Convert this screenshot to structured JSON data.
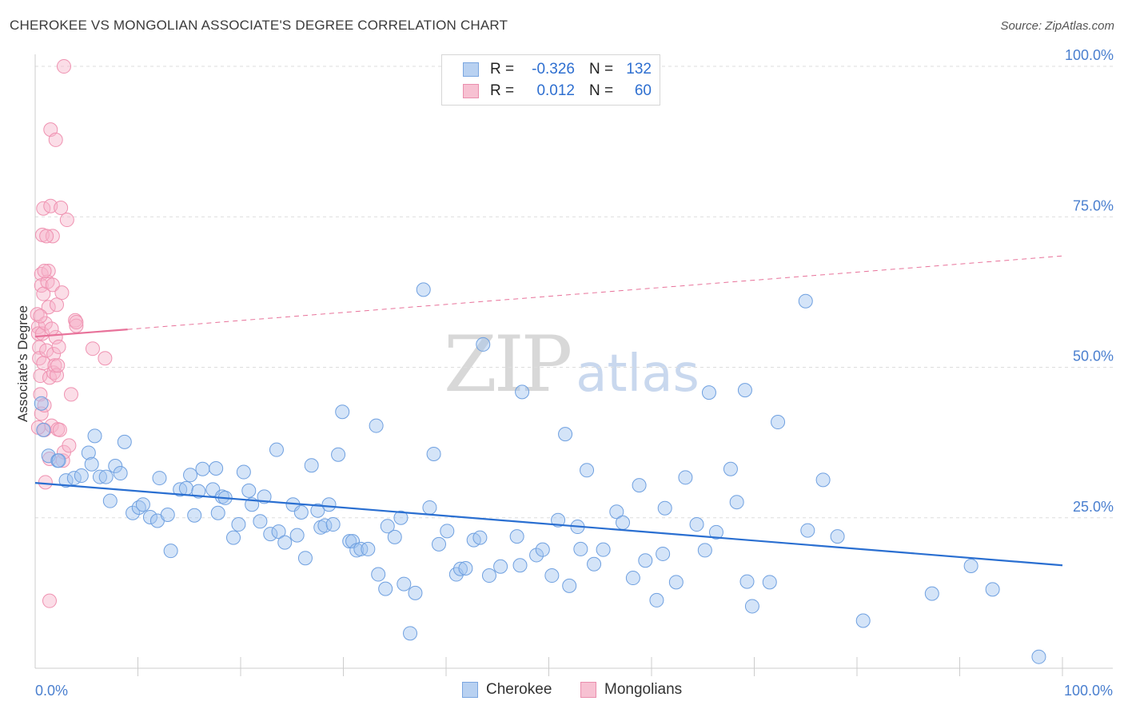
{
  "header": {
    "title": "CHEROKEE VS MONGOLIAN ASSOCIATE'S DEGREE CORRELATION CHART",
    "source": "Source: ZipAtlas.com"
  },
  "watermark": {
    "zip": "ZIP",
    "atlas": "atlas"
  },
  "legend": {
    "rows": [
      {
        "r_label": "R =",
        "r_value": "-0.326",
        "n_label": "N =",
        "n_value": "132",
        "fill": "#b8d1f1",
        "stroke": "#7aa6e0"
      },
      {
        "r_label": "R =",
        "r_value": "0.012",
        "n_label": "N =",
        "n_value": "60",
        "fill": "#f7c1d2",
        "stroke": "#ea8fae"
      }
    ]
  },
  "bottom_legend": [
    {
      "label": "Cherokee",
      "fill": "#b8d1f1",
      "stroke": "#7aa6e0"
    },
    {
      "label": "Mongolians",
      "fill": "#f7c1d2",
      "stroke": "#ea8fae"
    }
  ],
  "chart_data": {
    "type": "scatter",
    "title": "CHEROKEE VS MONGOLIAN ASSOCIATE'S DEGREE CORRELATION CHART",
    "xlabel": "",
    "ylabel": "Associate's Degree",
    "xlim": [
      0,
      100
    ],
    "ylim": [
      0,
      102
    ],
    "x_tick_labels": [
      "0.0%",
      "100.0%"
    ],
    "y_ticks": [
      25,
      50,
      75,
      100
    ],
    "y_tick_labels": [
      "25.0%",
      "50.0%",
      "75.0%",
      "100.0%"
    ],
    "grid": true,
    "legend_position": "top-center",
    "series": [
      {
        "name": "Cherokee",
        "color": "#6fa0e0",
        "trend": {
          "x": [
            0,
            100
          ],
          "y": [
            30.8,
            17.1
          ],
          "style": "solid",
          "color": "#2a6fd1"
        },
        "points": [
          [
            0.6,
            44.0
          ],
          [
            0.8,
            39.6
          ],
          [
            1.3,
            35.3
          ],
          [
            2.2,
            34.5
          ],
          [
            2.3,
            34.5
          ],
          [
            3.0,
            31.2
          ],
          [
            3.8,
            31.6
          ],
          [
            4.5,
            32.0
          ],
          [
            5.2,
            35.8
          ],
          [
            5.5,
            33.9
          ],
          [
            5.8,
            38.6
          ],
          [
            6.3,
            31.8
          ],
          [
            6.9,
            31.8
          ],
          [
            7.3,
            27.8
          ],
          [
            7.8,
            33.6
          ],
          [
            8.3,
            32.4
          ],
          [
            8.7,
            37.6
          ],
          [
            9.5,
            25.8
          ],
          [
            10.1,
            26.7
          ],
          [
            10.5,
            27.2
          ],
          [
            11.2,
            25.1
          ],
          [
            11.9,
            24.5
          ],
          [
            12.1,
            31.6
          ],
          [
            12.9,
            25.5
          ],
          [
            13.2,
            19.5
          ],
          [
            14.1,
            29.7
          ],
          [
            14.7,
            29.9
          ],
          [
            15.1,
            32.1
          ],
          [
            15.5,
            25.4
          ],
          [
            15.9,
            29.4
          ],
          [
            16.3,
            33.1
          ],
          [
            17.3,
            29.7
          ],
          [
            17.6,
            33.2
          ],
          [
            17.8,
            25.8
          ],
          [
            18.2,
            28.5
          ],
          [
            18.5,
            28.3
          ],
          [
            19.3,
            21.7
          ],
          [
            19.8,
            23.9
          ],
          [
            20.3,
            32.6
          ],
          [
            20.8,
            29.5
          ],
          [
            21.1,
            27.2
          ],
          [
            21.9,
            24.4
          ],
          [
            22.3,
            28.5
          ],
          [
            22.9,
            22.3
          ],
          [
            23.5,
            36.3
          ],
          [
            23.7,
            22.7
          ],
          [
            24.3,
            20.9
          ],
          [
            25.1,
            27.2
          ],
          [
            25.5,
            22.1
          ],
          [
            25.9,
            25.9
          ],
          [
            26.3,
            18.3
          ],
          [
            26.9,
            33.7
          ],
          [
            27.5,
            26.2
          ],
          [
            27.8,
            23.4
          ],
          [
            28.2,
            23.7
          ],
          [
            28.6,
            27.2
          ],
          [
            29.0,
            23.9
          ],
          [
            29.5,
            35.5
          ],
          [
            29.9,
            42.6
          ],
          [
            30.6,
            21.1
          ],
          [
            30.9,
            21.1
          ],
          [
            31.3,
            19.6
          ],
          [
            31.7,
            19.8
          ],
          [
            32.4,
            19.8
          ],
          [
            33.2,
            40.3
          ],
          [
            33.4,
            15.6
          ],
          [
            34.1,
            13.2
          ],
          [
            34.3,
            23.6
          ],
          [
            35.0,
            21.8
          ],
          [
            35.6,
            25.0
          ],
          [
            35.9,
            14.0
          ],
          [
            36.5,
            5.8
          ],
          [
            37.0,
            12.5
          ],
          [
            37.8,
            62.9
          ],
          [
            38.4,
            26.7
          ],
          [
            38.8,
            35.6
          ],
          [
            39.3,
            20.6
          ],
          [
            40.1,
            22.8
          ],
          [
            41.0,
            15.6
          ],
          [
            41.4,
            16.5
          ],
          [
            41.9,
            16.6
          ],
          [
            42.7,
            21.3
          ],
          [
            43.3,
            21.7
          ],
          [
            43.6,
            53.8
          ],
          [
            44.2,
            15.4
          ],
          [
            45.3,
            16.9
          ],
          [
            46.9,
            21.9
          ],
          [
            47.2,
            17.1
          ],
          [
            47.4,
            45.9
          ],
          [
            48.8,
            18.8
          ],
          [
            49.4,
            19.7
          ],
          [
            50.3,
            15.4
          ],
          [
            50.9,
            24.6
          ],
          [
            51.6,
            38.9
          ],
          [
            52.0,
            13.7
          ],
          [
            52.8,
            23.5
          ],
          [
            53.1,
            19.8
          ],
          [
            53.7,
            32.9
          ],
          [
            54.4,
            17.3
          ],
          [
            55.3,
            19.7
          ],
          [
            56.6,
            26.0
          ],
          [
            57.2,
            24.2
          ],
          [
            58.2,
            15.0
          ],
          [
            58.8,
            30.4
          ],
          [
            59.4,
            17.9
          ],
          [
            60.5,
            11.3
          ],
          [
            61.1,
            19.0
          ],
          [
            61.3,
            26.6
          ],
          [
            62.4,
            14.3
          ],
          [
            63.3,
            31.7
          ],
          [
            64.4,
            23.9
          ],
          [
            65.2,
            19.6
          ],
          [
            65.6,
            45.8
          ],
          [
            66.3,
            22.6
          ],
          [
            67.7,
            33.1
          ],
          [
            68.3,
            27.6
          ],
          [
            69.1,
            46.2
          ],
          [
            69.3,
            14.4
          ],
          [
            69.8,
            10.3
          ],
          [
            71.5,
            14.3
          ],
          [
            72.3,
            40.9
          ],
          [
            75.0,
            61.0
          ],
          [
            75.2,
            22.9
          ],
          [
            76.7,
            31.3
          ],
          [
            78.1,
            21.9
          ],
          [
            80.6,
            7.9
          ],
          [
            87.3,
            12.4
          ],
          [
            91.1,
            17.0
          ],
          [
            93.2,
            13.1
          ],
          [
            97.7,
            1.9
          ]
        ]
      },
      {
        "name": "Mongolians",
        "color": "#ef92b1",
        "trend": {
          "x": [
            0,
            9.0
          ],
          "y": [
            55.1,
            56.3
          ],
          "style": "solid",
          "color": "#e8729a",
          "extension": {
            "x": [
              9.0,
              100
            ],
            "y": [
              56.3,
              68.5
            ],
            "style": "dashed"
          }
        },
        "points": [
          [
            0.2,
            58.8
          ],
          [
            0.3,
            56.7
          ],
          [
            0.3,
            55.6
          ],
          [
            0.4,
            53.3
          ],
          [
            0.4,
            51.5
          ],
          [
            0.5,
            48.6
          ],
          [
            0.5,
            45.5
          ],
          [
            0.6,
            65.5
          ],
          [
            0.6,
            63.6
          ],
          [
            0.6,
            42.3
          ],
          [
            0.7,
            72.0
          ],
          [
            0.7,
            55.6
          ],
          [
            0.8,
            76.4
          ],
          [
            0.8,
            62.2
          ],
          [
            0.8,
            50.7
          ],
          [
            0.9,
            43.7
          ],
          [
            0.9,
            39.6
          ],
          [
            1.0,
            30.9
          ],
          [
            1.0,
            57.3
          ],
          [
            1.1,
            52.8
          ],
          [
            1.2,
            64.2
          ],
          [
            1.3,
            66.0
          ],
          [
            1.3,
            60.0
          ],
          [
            1.4,
            48.3
          ],
          [
            1.4,
            34.8
          ],
          [
            1.4,
            11.2
          ],
          [
            1.5,
            76.8
          ],
          [
            1.5,
            89.5
          ],
          [
            1.6,
            40.3
          ],
          [
            1.7,
            71.8
          ],
          [
            1.7,
            63.7
          ],
          [
            1.8,
            52.2
          ],
          [
            1.8,
            49.1
          ],
          [
            1.9,
            50.3
          ],
          [
            2.0,
            55.0
          ],
          [
            2.0,
            87.8
          ],
          [
            2.1,
            48.7
          ],
          [
            2.1,
            60.4
          ],
          [
            2.2,
            39.7
          ],
          [
            2.3,
            53.4
          ],
          [
            2.4,
            39.6
          ],
          [
            2.5,
            76.5
          ],
          [
            2.6,
            62.4
          ],
          [
            2.7,
            34.5
          ],
          [
            2.8,
            35.9
          ],
          [
            2.8,
            100.0
          ],
          [
            3.1,
            74.5
          ],
          [
            3.3,
            37.0
          ],
          [
            3.5,
            45.5
          ],
          [
            3.9,
            57.8
          ],
          [
            4.0,
            56.9
          ],
          [
            4.0,
            57.5
          ],
          [
            5.6,
            53.1
          ],
          [
            6.8,
            51.5
          ],
          [
            0.3,
            40.0
          ],
          [
            0.9,
            66.0
          ],
          [
            1.1,
            71.8
          ],
          [
            1.6,
            56.4
          ],
          [
            2.2,
            50.3
          ],
          [
            0.5,
            58.5
          ]
        ]
      }
    ]
  }
}
